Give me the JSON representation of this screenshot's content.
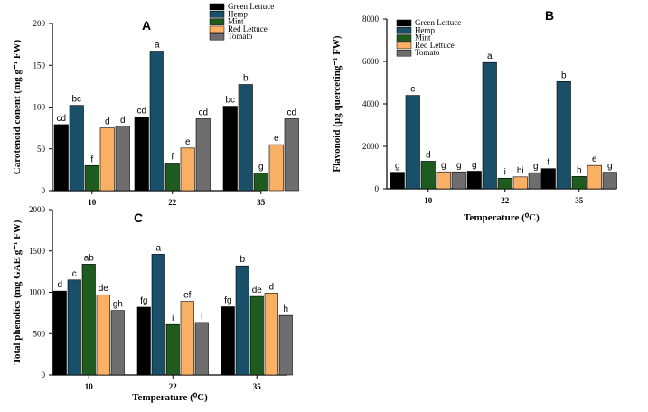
{
  "series_colors": [
    "#000000",
    "#1a4f69",
    "#1f5a1f",
    "#f9b064",
    "#6e6e6e"
  ],
  "chart_data": [
    {
      "type": "bar",
      "panel_label": "A",
      "categories": [
        "10",
        "22",
        "35"
      ],
      "ylabel": "Carotenoid conent (mg g⁻¹ FW)",
      "xlabel": "",
      "ylim": [
        0,
        200
      ],
      "yticks": [
        "0",
        "50",
        "100",
        "150",
        "200"
      ],
      "series": [
        {
          "name": "Green Lettuce",
          "values": [
            79,
            88,
            101
          ],
          "labels": [
            "cd",
            "cd",
            "bc"
          ]
        },
        {
          "name": "Hemp",
          "values": [
            102,
            167,
            127
          ],
          "labels": [
            "bc",
            "a",
            "b"
          ]
        },
        {
          "name": "Mint",
          "values": [
            30,
            33,
            21
          ],
          "labels": [
            "f",
            "f",
            "g"
          ]
        },
        {
          "name": "Red Lettuce",
          "values": [
            75,
            51,
            55
          ],
          "labels": [
            "d",
            "e",
            "e"
          ]
        },
        {
          "name": "Tomato",
          "values": [
            77,
            86,
            86
          ],
          "labels": [
            "d",
            "cd",
            "cd"
          ]
        }
      ]
    },
    {
      "type": "bar",
      "panel_label": "B",
      "categories": [
        "10",
        "22",
        "35"
      ],
      "ylabel": "Flavonoid (µg querceting⁻¹ FW)",
      "xlabel": "Temperature (⁰C)",
      "ylim": [
        0,
        8000
      ],
      "yticks": [
        "0",
        "2000",
        "4000",
        "6000",
        "8000"
      ],
      "series": [
        {
          "name": "Green Lettuce",
          "values": [
            780,
            830,
            950
          ],
          "labels": [
            "g",
            "g",
            "f"
          ]
        },
        {
          "name": "Hemp",
          "values": [
            4400,
            5950,
            5050
          ],
          "labels": [
            "c",
            "a",
            "b"
          ]
        },
        {
          "name": "Mint",
          "values": [
            1300,
            500,
            580
          ],
          "labels": [
            "d",
            "i",
            "h"
          ]
        },
        {
          "name": "Red Lettuce",
          "values": [
            800,
            560,
            1100
          ],
          "labels": [
            "g",
            "hi",
            "e"
          ]
        },
        {
          "name": "Tomato",
          "values": [
            800,
            760,
            780
          ],
          "labels": [
            "g",
            "g",
            "g"
          ]
        }
      ]
    },
    {
      "type": "bar",
      "panel_label": "C",
      "categories": [
        "10",
        "22",
        "35"
      ],
      "ylabel": "Total phenolics (mg GAE g⁻¹ FW)",
      "xlabel": "Temperature (⁰C)",
      "ylim": [
        0,
        2000
      ],
      "yticks": [
        "0",
        "500",
        "1000",
        "1500",
        "2000"
      ],
      "series": [
        {
          "name": "Green Lettuce",
          "values": [
            1015,
            820,
            825
          ],
          "labels": [
            "d",
            "fg",
            "fg"
          ]
        },
        {
          "name": "Hemp",
          "values": [
            1150,
            1460,
            1320
          ],
          "labels": [
            "c",
            "a",
            "b"
          ]
        },
        {
          "name": "Mint",
          "values": [
            1340,
            610,
            950
          ],
          "labels": [
            "ab",
            "i",
            "de"
          ]
        },
        {
          "name": "Red Lettuce",
          "values": [
            970,
            890,
            990
          ],
          "labels": [
            "de",
            "ef",
            "d"
          ]
        },
        {
          "name": "Tomato",
          "values": [
            780,
            635,
            720
          ],
          "labels": [
            "gh",
            "i",
            "h"
          ]
        }
      ]
    }
  ]
}
